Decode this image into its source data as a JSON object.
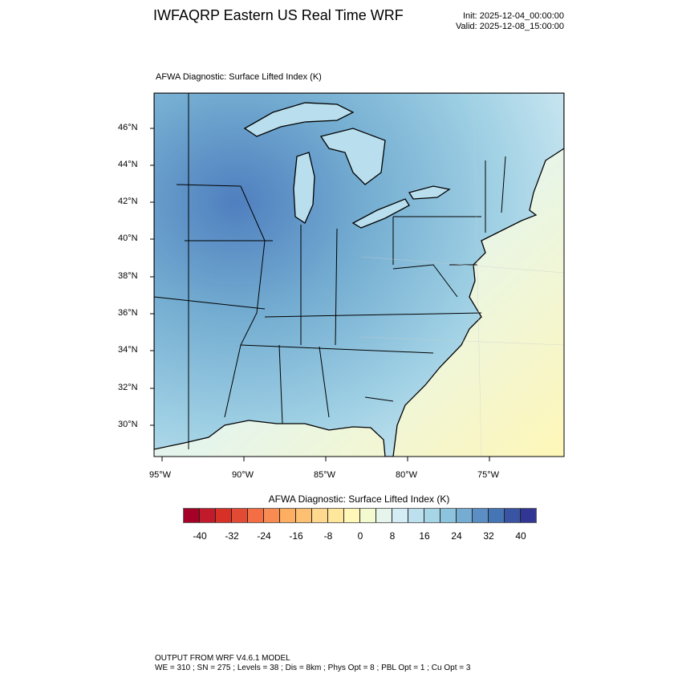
{
  "header": {
    "title": "IWFAQRP Eastern US Real Time WRF",
    "init": "Init: 2025-12-04_00:00:00",
    "valid": "Valid: 2025-12-08_15:00:00"
  },
  "map": {
    "subtitle": "AFWA Diagnostic: Surface Lifted Index   (K)",
    "lat_labels": [
      "46°N",
      "44°N",
      "42°N",
      "40°N",
      "38°N",
      "36°N",
      "34°N",
      "32°N",
      "30°N"
    ],
    "lon_labels": [
      "95°W",
      "90°W",
      "85°W",
      "80°W",
      "75°W"
    ]
  },
  "colorbar": {
    "title": "AFWA Diagnostic: Surface Lifted Index  (K)",
    "labels": [
      "-40",
      "-32",
      "-24",
      "-16",
      "-8",
      "0",
      "8",
      "16",
      "24",
      "32",
      "40"
    ],
    "colors": [
      "#a50026",
      "#c01a2b",
      "#d73027",
      "#e34a33",
      "#f46d43",
      "#f88b51",
      "#fdae61",
      "#fdbf71",
      "#fed98e",
      "#fee79a",
      "#fff7b8",
      "#f3fad0",
      "#e6f5eb",
      "#d4ecf3",
      "#bde0ee",
      "#a6d5e6",
      "#8cc4de",
      "#74add1",
      "#5b8fc3",
      "#4575b4",
      "#3a54a4",
      "#313695"
    ]
  },
  "footer": {
    "line1": "OUTPUT FROM WRF V4.6.1 MODEL",
    "line2": "WE = 310 ; SN = 275 ; Levels = 38 ; Dis = 8km ; Phys Opt = 8 ; PBL Opt = 1 ; Cu Opt = 3"
  }
}
